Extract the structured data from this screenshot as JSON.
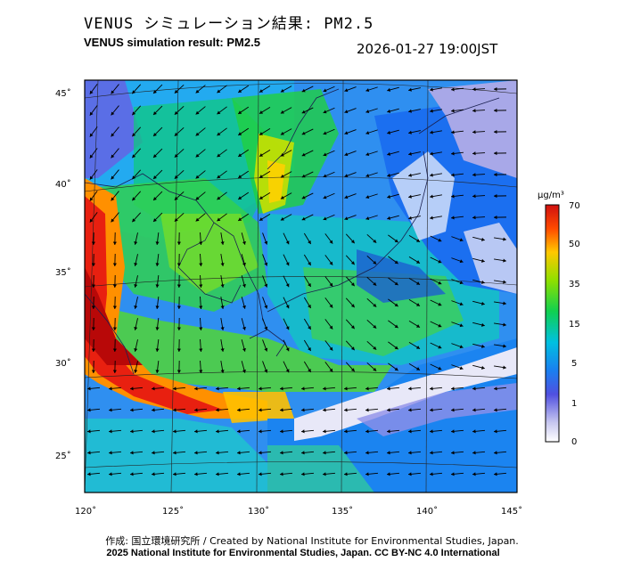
{
  "header": {
    "title_jp": "VENUS シミュレーション結果: PM2.5",
    "title_en": "VENUS simulation result: PM2.5",
    "timestamp": "2026-01-27 19:00JST"
  },
  "map": {
    "lon_ticks": [
      "120˚",
      "125˚",
      "130˚",
      "135˚",
      "140˚",
      "145˚"
    ],
    "lat_ticks": [
      "45˚",
      "40˚",
      "35˚",
      "30˚",
      "25˚"
    ],
    "lon_range": [
      120,
      145
    ],
    "lat_range": [
      23,
      46
    ]
  },
  "colorbar": {
    "unit": "μg/m³",
    "labels": [
      "70",
      "50",
      "35",
      "15",
      "5",
      "1",
      "0"
    ],
    "colors": [
      "#d01010",
      "#ff4a00",
      "#ffc800",
      "#8ee000",
      "#10d050",
      "#00c0e0",
      "#1a7ff0",
      "#5050e0",
      "#c8c8f0",
      "#ffffff"
    ]
  },
  "footer": {
    "credit_jp": "作成: 国立環境研究所 / Created by National Institute for Environmental Studies, Japan.",
    "credit_en": "2025 National Institute for Environmental Studies, Japan. CC BY-NC 4.0 International"
  }
}
